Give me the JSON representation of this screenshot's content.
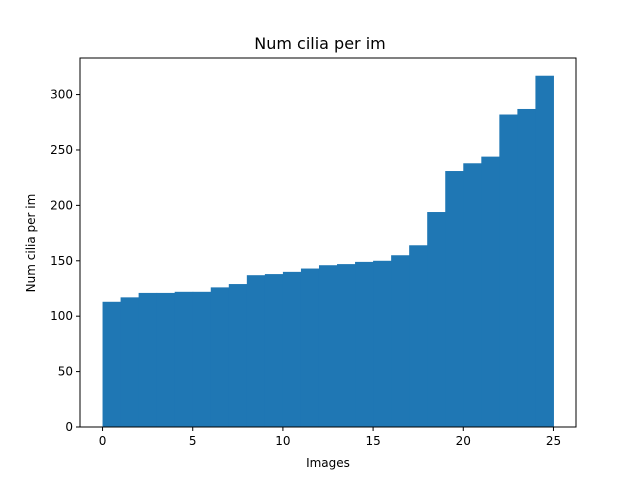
{
  "chart_data": {
    "type": "bar",
    "style": "step-histogram",
    "title": "Num cilia per im",
    "xlabel": "Images",
    "ylabel": "Num cilia per im",
    "bar_color": "#1f77b4",
    "xlim": [
      -1.25,
      26.25
    ],
    "ylim": [
      0,
      333
    ],
    "grid": false,
    "x": [
      0,
      1,
      2,
      3,
      4,
      5,
      6,
      7,
      8,
      9,
      10,
      11,
      12,
      13,
      14,
      15,
      16,
      17,
      18,
      19,
      20,
      21,
      22,
      23,
      24
    ],
    "values": [
      113,
      117,
      121,
      121,
      122,
      122,
      126,
      129,
      137,
      138,
      140,
      143,
      146,
      147,
      149,
      150,
      155,
      164,
      194,
      231,
      238,
      244,
      282,
      287,
      317
    ],
    "xticks": [
      0,
      5,
      10,
      15,
      20,
      25
    ],
    "xtick_labels": [
      "0",
      "5",
      "10",
      "15",
      "20",
      "25"
    ],
    "yticks": [
      0,
      50,
      100,
      150,
      200,
      250,
      300
    ],
    "ytick_labels": [
      "0",
      "50",
      "100",
      "150",
      "200",
      "250",
      "300"
    ]
  }
}
